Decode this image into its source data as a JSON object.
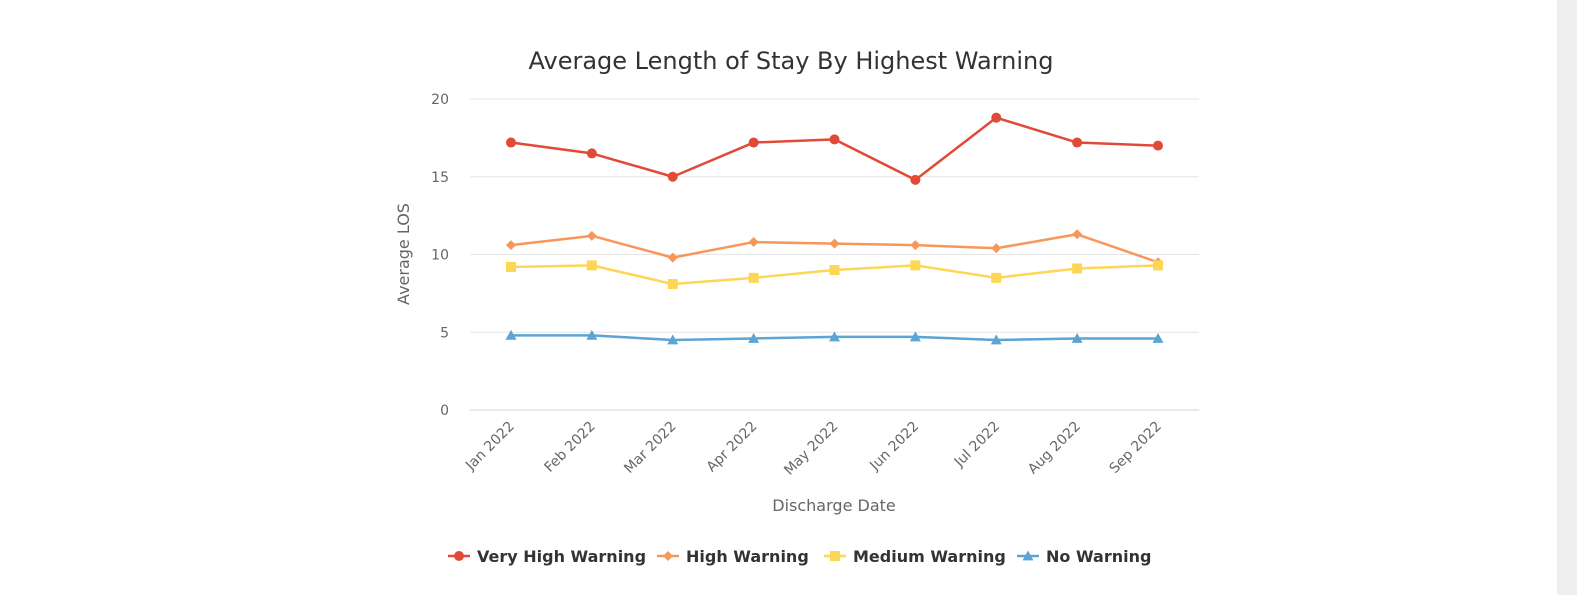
{
  "chart_data": {
    "type": "line",
    "title": "Average Length of Stay By Highest Warning",
    "xlabel": "Discharge Date",
    "ylabel": "Average LOS",
    "ylim": [
      0,
      20
    ],
    "yticks": [
      0,
      5,
      10,
      15,
      20
    ],
    "grid": true,
    "legend_position": "bottom",
    "categories": [
      "Jan 2022",
      "Feb 2022",
      "Mar 2022",
      "Apr 2022",
      "May 2022",
      "Jun 2022",
      "Jul 2022",
      "Aug 2022",
      "Sep 2022"
    ],
    "series": [
      {
        "name": "Very High Warning",
        "color": "#e04a37",
        "marker": "circle",
        "values": [
          17.2,
          16.5,
          15.0,
          17.2,
          17.4,
          14.8,
          18.8,
          17.2,
          17.0
        ]
      },
      {
        "name": "High Warning",
        "color": "#f7975a",
        "marker": "diamond",
        "values": [
          10.6,
          11.2,
          9.8,
          10.8,
          10.7,
          10.6,
          10.4,
          11.3,
          9.5
        ]
      },
      {
        "name": "Medium Warning",
        "color": "#fcd654",
        "marker": "square",
        "values": [
          9.2,
          9.3,
          8.1,
          8.5,
          9.0,
          9.3,
          8.5,
          9.1,
          9.3
        ]
      },
      {
        "name": "No Warning",
        "color": "#5ba4d4",
        "marker": "triangle",
        "values": [
          4.8,
          4.8,
          4.5,
          4.6,
          4.7,
          4.7,
          4.5,
          4.6,
          4.6
        ]
      }
    ]
  }
}
